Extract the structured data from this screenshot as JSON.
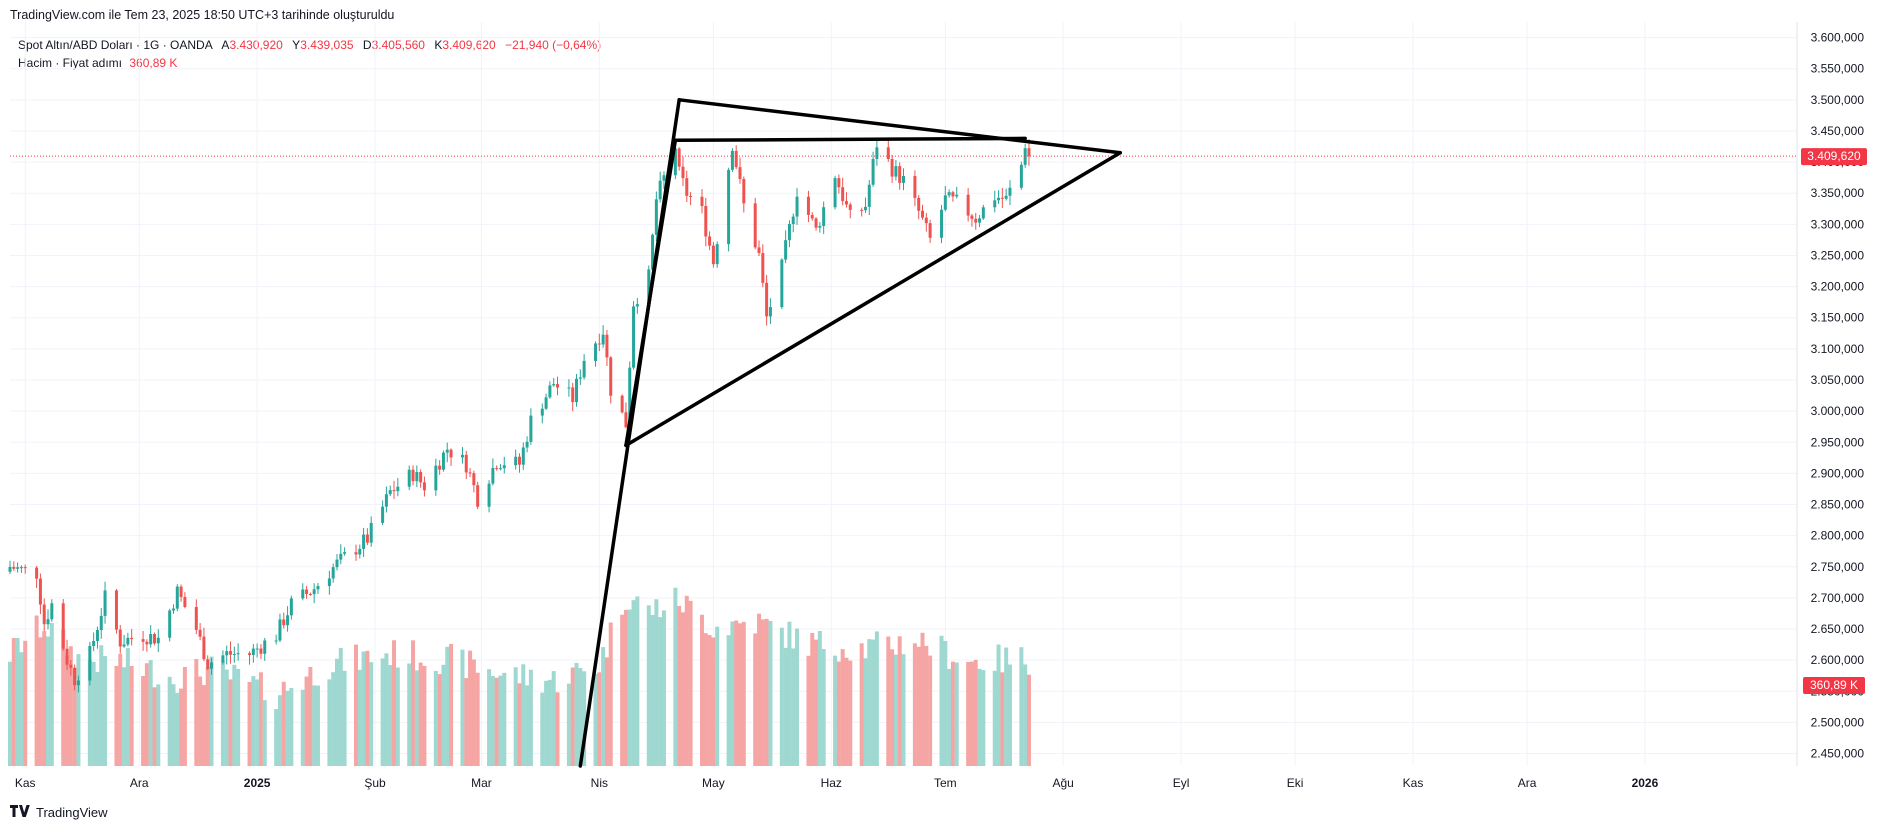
{
  "header": {
    "created_text": "TradingView.com ile Tem 23, 2025 18:50 UTC+3 tarihinde oluşturuldu"
  },
  "legend": {
    "symbol": "Spot Altın/ABD Doları · 1G · OANDA",
    "open_key": "A",
    "open_val": "3.430,920",
    "high_key": "Y",
    "high_val": "3.439,035",
    "low_key": "D",
    "low_val": "3.405,560",
    "close_key": "K",
    "close_val": "3.409,620",
    "change": "−21,940 (−0,64%)",
    "volume_label": "Hacim · Fiyat adımı",
    "volume_val": "360,89 K"
  },
  "footer": {
    "brand": "TradingView",
    "logo_icon": "tradingview-logo-icon"
  },
  "colors": {
    "up": "#26a69a",
    "down": "#ef5350",
    "up_vol": "#9fd8d1",
    "down_vol": "#f5a6a4",
    "last_price": "#f23645",
    "grid": "#f0f3fa"
  },
  "chart_data": {
    "type": "candlestick",
    "title": "Spot Altın/ABD Doları · 1G · OANDA",
    "y_range": [
      2430000,
      3625000
    ],
    "y_ticks": [
      "3.600,000",
      "3.550,000",
      "3.500,000",
      "3.450,000",
      "3.400,000",
      "3.350,000",
      "3.300,000",
      "3.250,000",
      "3.200,000",
      "3.150,000",
      "3.100,000",
      "3.050,000",
      "3.000,000",
      "2.950,000",
      "2.900,000",
      "2.850,000",
      "2.800,000",
      "2.750,000",
      "2.700,000",
      "2.650,000",
      "2.600,000",
      "2.550,000",
      "2.500,000",
      "2.450,000"
    ],
    "y_tick_values": [
      3600,
      3550,
      3500,
      3450,
      3400,
      3350,
      3300,
      3250,
      3200,
      3150,
      3100,
      3050,
      3000,
      2950,
      2900,
      2850,
      2800,
      2750,
      2700,
      2650,
      2600,
      2550,
      2500,
      2450
    ],
    "x_labels": [
      {
        "label": "Kas",
        "date": "2024-11-01",
        "bold": false
      },
      {
        "label": "Ara",
        "date": "2024-12-01",
        "bold": false
      },
      {
        "label": "2025",
        "date": "2025-01-01",
        "bold": true
      },
      {
        "label": "Şub",
        "date": "2025-02-01",
        "bold": false
      },
      {
        "label": "Mar",
        "date": "2025-03-01",
        "bold": false
      },
      {
        "label": "Nis",
        "date": "2025-04-01",
        "bold": false
      },
      {
        "label": "May",
        "date": "2025-05-01",
        "bold": false
      },
      {
        "label": "Haz",
        "date": "2025-06-01",
        "bold": false
      },
      {
        "label": "Tem",
        "date": "2025-07-01",
        "bold": false
      },
      {
        "label": "Ağu",
        "date": "2025-08-01",
        "bold": false
      },
      {
        "label": "Eyl",
        "date": "2025-09-01",
        "bold": false
      },
      {
        "label": "Eki",
        "date": "2025-10-01",
        "bold": false
      },
      {
        "label": "Kas",
        "date": "2025-11-01",
        "bold": false
      },
      {
        "label": "Ara",
        "date": "2025-12-01",
        "bold": false
      },
      {
        "label": "2026",
        "date": "2026-01-01",
        "bold": true
      }
    ],
    "x_range": [
      "2024-10-28",
      "2026-02-10"
    ],
    "last_price": 3409.62,
    "last_price_label": "3.409,620",
    "last_volume_label": "360,89 K",
    "close_path": [
      {
        "date": "2024-10-28",
        "close": 2750
      },
      {
        "date": "2024-10-31",
        "close": 2745
      },
      {
        "date": "2024-11-04",
        "close": 2740
      },
      {
        "date": "2024-11-06",
        "close": 2660
      },
      {
        "date": "2024-11-08",
        "close": 2690
      },
      {
        "date": "2024-11-12",
        "close": 2600
      },
      {
        "date": "2024-11-14",
        "close": 2570
      },
      {
        "date": "2024-11-18",
        "close": 2610
      },
      {
        "date": "2024-11-22",
        "close": 2700
      },
      {
        "date": "2024-11-26",
        "close": 2630
      },
      {
        "date": "2024-12-02",
        "close": 2640
      },
      {
        "date": "2024-12-06",
        "close": 2635
      },
      {
        "date": "2024-12-11",
        "close": 2710
      },
      {
        "date": "2024-12-16",
        "close": 2650
      },
      {
        "date": "2024-12-19",
        "close": 2595
      },
      {
        "date": "2024-12-24",
        "close": 2610
      },
      {
        "date": "2024-12-30",
        "close": 2610
      },
      {
        "date": "2025-01-06",
        "close": 2640
      },
      {
        "date": "2025-01-10",
        "close": 2690
      },
      {
        "date": "2025-01-16",
        "close": 2715
      },
      {
        "date": "2025-01-22",
        "close": 2755
      },
      {
        "date": "2025-01-30",
        "close": 2795
      },
      {
        "date": "2025-02-05",
        "close": 2870
      },
      {
        "date": "2025-02-11",
        "close": 2900
      },
      {
        "date": "2025-02-14",
        "close": 2880
      },
      {
        "date": "2025-02-20",
        "close": 2940
      },
      {
        "date": "2025-02-25",
        "close": 2915
      },
      {
        "date": "2025-02-28",
        "close": 2860
      },
      {
        "date": "2025-03-05",
        "close": 2920
      },
      {
        "date": "2025-03-11",
        "close": 2915
      },
      {
        "date": "2025-03-14",
        "close": 2985
      },
      {
        "date": "2025-03-20",
        "close": 3045
      },
      {
        "date": "2025-03-25",
        "close": 3020
      },
      {
        "date": "2025-03-28",
        "close": 3085
      },
      {
        "date": "2025-04-02",
        "close": 3130
      },
      {
        "date": "2025-04-04",
        "close": 3035
      },
      {
        "date": "2025-04-08",
        "close": 2980
      },
      {
        "date": "2025-04-10",
        "close": 3175
      },
      {
        "date": "2025-04-14",
        "close": 3215
      },
      {
        "date": "2025-04-16",
        "close": 3340
      },
      {
        "date": "2025-04-21",
        "close": 3425
      },
      {
        "date": "2025-04-22",
        "close": 3380
      },
      {
        "date": "2025-04-24",
        "close": 3350
      },
      {
        "date": "2025-04-28",
        "close": 3320
      },
      {
        "date": "2025-05-01",
        "close": 3240
      },
      {
        "date": "2025-05-06",
        "close": 3430
      },
      {
        "date": "2025-05-09",
        "close": 3330
      },
      {
        "date": "2025-05-13",
        "close": 3250
      },
      {
        "date": "2025-05-15",
        "close": 3150
      },
      {
        "date": "2025-05-19",
        "close": 3230
      },
      {
        "date": "2025-05-23",
        "close": 3355
      },
      {
        "date": "2025-05-28",
        "close": 3290
      },
      {
        "date": "2025-06-02",
        "close": 3380
      },
      {
        "date": "2025-06-06",
        "close": 3310
      },
      {
        "date": "2025-06-10",
        "close": 3330
      },
      {
        "date": "2025-06-13",
        "close": 3430
      },
      {
        "date": "2025-06-17",
        "close": 3390
      },
      {
        "date": "2025-06-20",
        "close": 3370
      },
      {
        "date": "2025-06-24",
        "close": 3320
      },
      {
        "date": "2025-06-27",
        "close": 3275
      },
      {
        "date": "2025-07-01",
        "close": 3340
      },
      {
        "date": "2025-07-04",
        "close": 3335
      },
      {
        "date": "2025-07-09",
        "close": 3310
      },
      {
        "date": "2025-07-14",
        "close": 3345
      },
      {
        "date": "2025-07-17",
        "close": 3340
      },
      {
        "date": "2025-07-21",
        "close": 3395
      },
      {
        "date": "2025-07-22",
        "close": 3430
      },
      {
        "date": "2025-07-23",
        "close": 3409.62
      }
    ],
    "volume_range": [
      0,
      1000
    ],
    "volume_path": [
      {
        "date": "2024-10-28",
        "volume": 210
      },
      {
        "date": "2024-11-06",
        "volume": 265
      },
      {
        "date": "2024-11-15",
        "volume": 200
      },
      {
        "date": "2024-11-26",
        "volume": 195
      },
      {
        "date": "2024-12-10",
        "volume": 165
      },
      {
        "date": "2024-12-20",
        "volume": 180
      },
      {
        "date": "2025-01-06",
        "volume": 135
      },
      {
        "date": "2025-01-20",
        "volume": 190
      },
      {
        "date": "2025-02-05",
        "volume": 210
      },
      {
        "date": "2025-02-20",
        "volume": 200
      },
      {
        "date": "2025-03-05",
        "volume": 175
      },
      {
        "date": "2025-03-20",
        "volume": 160
      },
      {
        "date": "2025-04-01",
        "volume": 190
      },
      {
        "date": "2025-04-08",
        "volume": 320
      },
      {
        "date": "2025-04-14",
        "volume": 290
      },
      {
        "date": "2025-04-22",
        "volume": 310
      },
      {
        "date": "2025-05-01",
        "volume": 260
      },
      {
        "date": "2025-05-12",
        "volume": 270
      },
      {
        "date": "2025-05-26",
        "volume": 230
      },
      {
        "date": "2025-06-10",
        "volume": 220
      },
      {
        "date": "2025-06-24",
        "volume": 235
      },
      {
        "date": "2025-07-07",
        "volume": 195
      },
      {
        "date": "2025-07-23",
        "volume": 200
      }
    ],
    "drawn_lines": [
      {
        "name": "triangle-upper-line",
        "from": {
          "date": "2025-04-22",
          "price": 3500
        },
        "to": {
          "date": "2025-08-16",
          "price": 3415
        }
      },
      {
        "name": "triangle-lower-line",
        "from": {
          "date": "2025-04-08",
          "price": 2945
        },
        "to": {
          "date": "2025-08-16",
          "price": 3415
        }
      },
      {
        "name": "horizontal-resistance-line",
        "from": {
          "date": "2025-04-21",
          "price": 3435
        },
        "to": {
          "date": "2025-07-22",
          "price": 3438
        }
      },
      {
        "name": "flagpole-line",
        "from": {
          "date": "2025-03-27",
          "price": 2430
        },
        "to": {
          "date": "2025-04-22",
          "price": 3500
        }
      },
      {
        "name": "flagpole-upper-line",
        "from": {
          "date": "2025-04-08",
          "price": 2945
        },
        "to": {
          "date": "2025-04-21",
          "price": 3435
        }
      }
    ]
  }
}
